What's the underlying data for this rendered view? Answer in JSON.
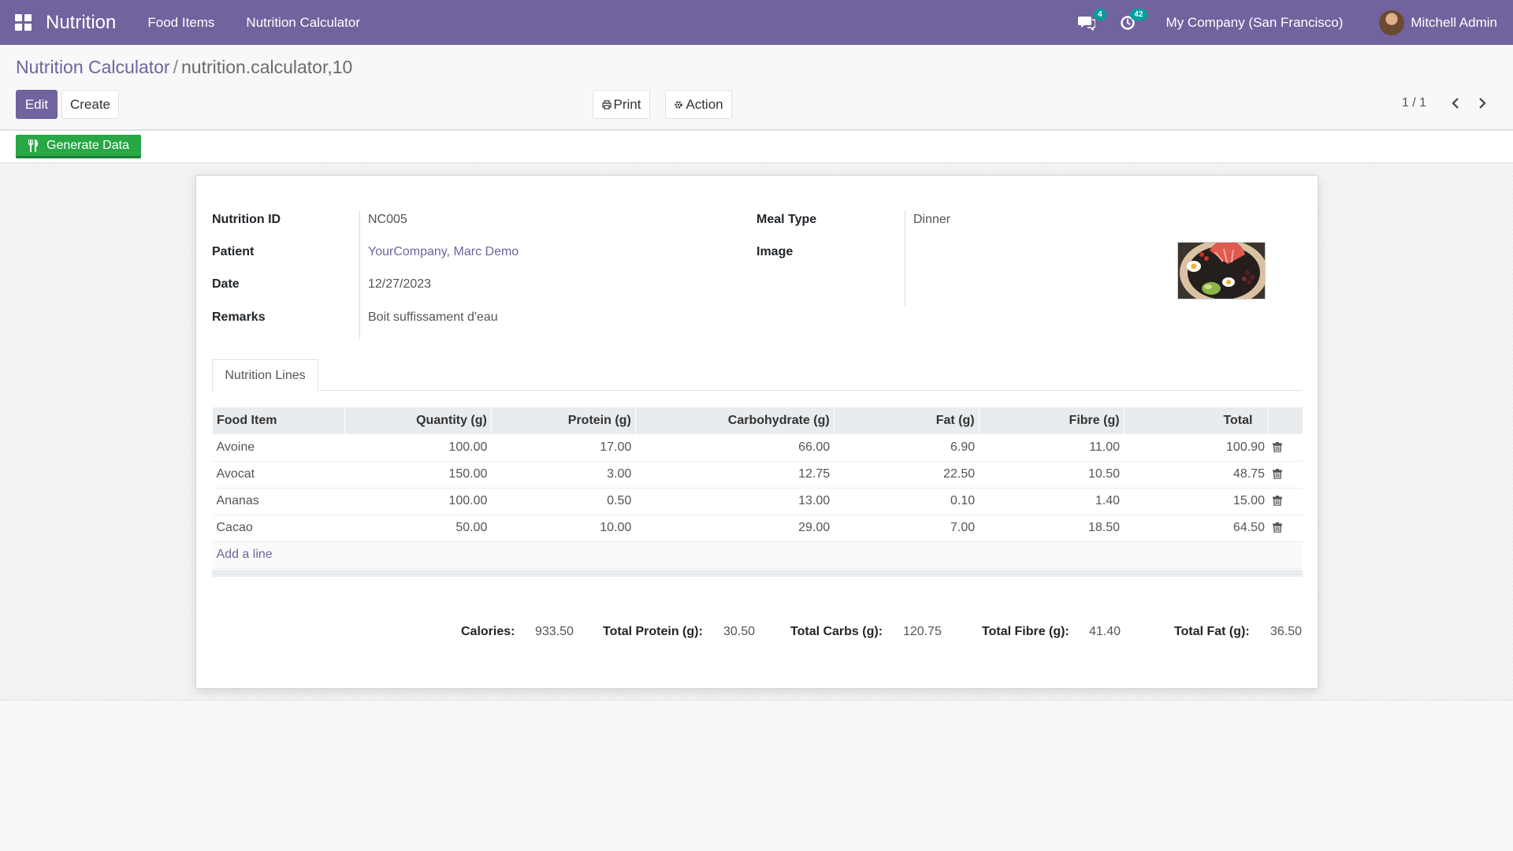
{
  "navbar": {
    "brand": "Nutrition",
    "menu": [
      "Food Items",
      "Nutrition Calculator"
    ],
    "messages_count": "4",
    "activities_count": "42",
    "company": "My Company (San Francisco)",
    "user": "Mitchell Admin",
    "color": "#71639e"
  },
  "breadcrumb": {
    "parent": "Nutrition Calculator",
    "separator": "/",
    "current": "nutrition.calculator,10"
  },
  "toolbar": {
    "edit_label": "Edit",
    "create_label": "Create",
    "print_label": "Print",
    "action_label": "Action",
    "pager": "1 / 1"
  },
  "statusbar": {
    "generate_label": "Generate Data"
  },
  "form": {
    "nutrition_id_label": "Nutrition ID",
    "nutrition_id": "NC005",
    "patient_label": "Patient",
    "patient": "YourCompany, Marc Demo",
    "date_label": "Date",
    "date": "12/27/2023",
    "remarks_label": "Remarks",
    "remarks": "Boit suffissament d'eau",
    "meal_type_label": "Meal Type",
    "meal_type": "Dinner",
    "image_label": "Image"
  },
  "tabs": {
    "lines_label": "Nutrition Lines"
  },
  "lines": {
    "headers": [
      "Food Item",
      "Quantity (g)",
      "Protein (g)",
      "Carbohydrate (g)",
      "Fat (g)",
      "Fibre (g)",
      "Total"
    ],
    "rows": [
      [
        "Avoine",
        "100.00",
        "17.00",
        "66.00",
        "6.90",
        "11.00",
        "100.90"
      ],
      [
        "Avocat",
        "150.00",
        "3.00",
        "12.75",
        "22.50",
        "10.50",
        "48.75"
      ],
      [
        "Ananas",
        "100.00",
        "0.50",
        "13.00",
        "0.10",
        "1.40",
        "15.00"
      ],
      [
        "Cacao",
        "50.00",
        "10.00",
        "29.00",
        "7.00",
        "18.50",
        "64.50"
      ]
    ],
    "add_line": "Add a line"
  },
  "totals": {
    "calories_label": "Calories:",
    "calories": "933.50",
    "protein_label": "Total Protein (g):",
    "protein": "30.50",
    "carbs_label": "Total Carbs (g):",
    "carbs": "120.75",
    "fibre_label": "Total Fibre (g):",
    "fibre": "41.40",
    "fat_label": "Total Fat (g):",
    "fat": "36.50"
  }
}
